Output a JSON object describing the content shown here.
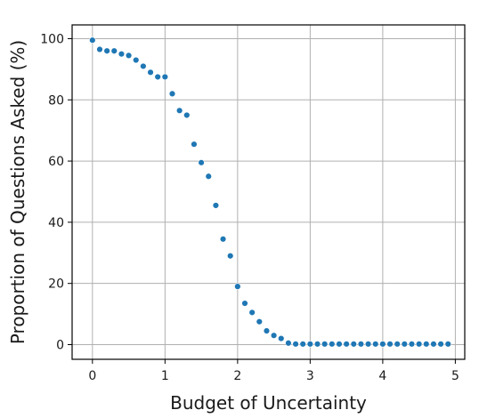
{
  "chart_data": {
    "type": "scatter",
    "xlabel": "Budget of Uncertainty",
    "ylabel": "Proportion of Questions Asked (%)",
    "xlim": [
      -0.28,
      5.13
    ],
    "ylim": [
      -4.8,
      104.5
    ],
    "xticks": [
      "0",
      "1",
      "2",
      "3",
      "4",
      "5"
    ],
    "yticks": [
      "0",
      "20",
      "40",
      "60",
      "80",
      "100"
    ],
    "grid": true,
    "marker_color": "#1f77b4",
    "series": [
      {
        "x": [
          0.0,
          0.1,
          0.2,
          0.3,
          0.4,
          0.5,
          0.6,
          0.7,
          0.8,
          0.9,
          1.0,
          1.1,
          1.2,
          1.3,
          1.4,
          1.5,
          1.6,
          1.7,
          1.8,
          1.9,
          2.0,
          2.1,
          2.2,
          2.3,
          2.4,
          2.5,
          2.6,
          2.7,
          2.8,
          2.9,
          3.0,
          3.1,
          3.2,
          3.3,
          3.4,
          3.5,
          3.6,
          3.7,
          3.8,
          3.9,
          4.0,
          4.1,
          4.2,
          4.3,
          4.4,
          4.5,
          4.6,
          4.7,
          4.8,
          4.9
        ],
        "y": [
          99.5,
          96.5,
          96.0,
          96.0,
          95.0,
          94.5,
          93.0,
          91.0,
          89.0,
          87.5,
          87.5,
          82.0,
          76.5,
          75.0,
          65.5,
          59.5,
          55.0,
          45.5,
          34.5,
          29.0,
          19.0,
          13.5,
          10.5,
          7.5,
          4.5,
          3.0,
          2.0,
          0.5,
          0.2,
          0.2,
          0.2,
          0.2,
          0.2,
          0.2,
          0.2,
          0.2,
          0.2,
          0.2,
          0.2,
          0.2,
          0.2,
          0.2,
          0.2,
          0.2,
          0.2,
          0.2,
          0.2,
          0.2,
          0.2,
          0.2
        ]
      }
    ]
  }
}
